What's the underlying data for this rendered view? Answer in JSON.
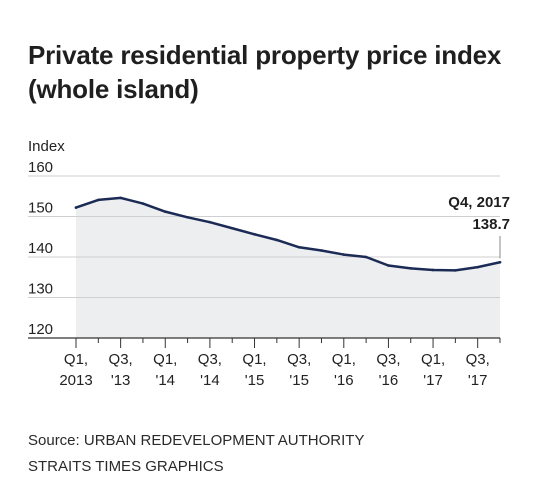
{
  "title_line1": "Private residential property price index",
  "title_line2": "(whole island)",
  "source_line1": "Source: URBAN REDEVELOPMENT AUTHORITY",
  "source_line2": "STRAITS TIMES GRAPHICS",
  "colors": {
    "line": "#1c2b55",
    "area": "#eceeef",
    "grid": "#cfcfcf",
    "axis": "#333333"
  },
  "chart_data": {
    "type": "area",
    "title": "Private residential property price index (whole island)",
    "ylabel": "Index",
    "ylim": [
      120,
      160
    ],
    "yticks": [
      160,
      150,
      140,
      130,
      120
    ],
    "grid": true,
    "x": [
      "Q1 2013",
      "Q2 2013",
      "Q3 2013",
      "Q4 2013",
      "Q1 2014",
      "Q2 2014",
      "Q3 2014",
      "Q4 2014",
      "Q1 2015",
      "Q2 2015",
      "Q3 2015",
      "Q4 2015",
      "Q1 2016",
      "Q2 2016",
      "Q3 2016",
      "Q4 2016",
      "Q1 2017",
      "Q2 2017",
      "Q3 2017",
      "Q4 2017"
    ],
    "x_tick_labels": [
      {
        "line1": "Q1,",
        "line2": "2013",
        "index": 0
      },
      {
        "line1": "Q3,",
        "line2": "'13",
        "index": 2
      },
      {
        "line1": "Q1,",
        "line2": "'14",
        "index": 4
      },
      {
        "line1": "Q3,",
        "line2": "'14",
        "index": 6
      },
      {
        "line1": "Q1,",
        "line2": "'15",
        "index": 8
      },
      {
        "line1": "Q3,",
        "line2": "'15",
        "index": 10
      },
      {
        "line1": "Q1,",
        "line2": "'16",
        "index": 12
      },
      {
        "line1": "Q3,",
        "line2": "'16",
        "index": 14
      },
      {
        "line1": "Q1,",
        "line2": "'17",
        "index": 16
      },
      {
        "line1": "Q3,",
        "line2": "'17",
        "index": 18
      }
    ],
    "series": [
      {
        "values": [
          152.2,
          154.1,
          154.6,
          153.2,
          151.2,
          149.8,
          148.6,
          147.1,
          145.6,
          144.2,
          142.4,
          141.6,
          140.6,
          140.0,
          137.9,
          137.2,
          136.8,
          136.7,
          137.5,
          138.7
        ]
      }
    ],
    "annotation": {
      "line1": "Q4, 2017",
      "line2": "138.7",
      "index": 19
    }
  }
}
